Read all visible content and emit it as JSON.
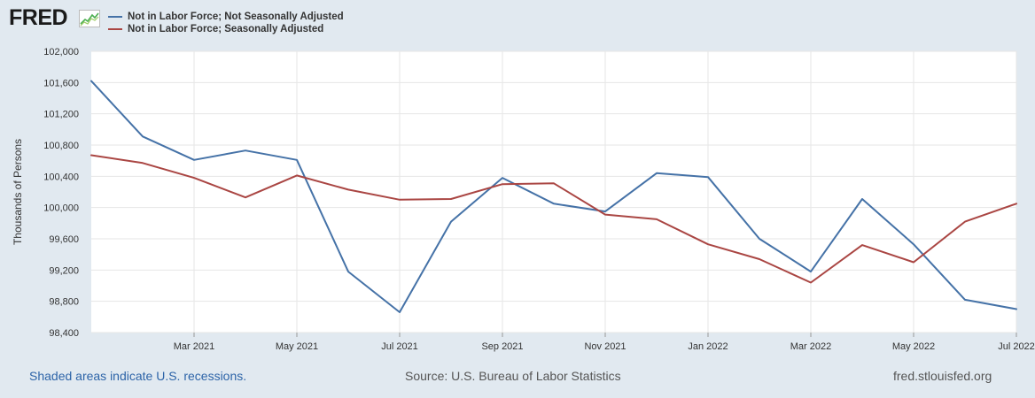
{
  "logo": {
    "text": "FRED",
    "icon": "fred-chart-icon"
  },
  "chart_data": {
    "type": "line",
    "title": "",
    "xlabel": "",
    "ylabel": "Thousands of Persons",
    "ylim": [
      98400,
      102000
    ],
    "yticks": [
      98400,
      98800,
      99200,
      99600,
      100000,
      100400,
      100800,
      101200,
      101600,
      102000
    ],
    "ytick_labels": [
      "98,400",
      "98,800",
      "99,200",
      "99,600",
      "100,000",
      "100,400",
      "100,800",
      "101,200",
      "101,600",
      "102,000"
    ],
    "x": [
      "Jan 2021",
      "Feb 2021",
      "Mar 2021",
      "Apr 2021",
      "May 2021",
      "Jun 2021",
      "Jul 2021",
      "Aug 2021",
      "Sep 2021",
      "Oct 2021",
      "Nov 2021",
      "Dec 2021",
      "Jan 2022",
      "Feb 2022",
      "Mar 2022",
      "Apr 2022",
      "May 2022",
      "Jun 2022",
      "Jul 2022"
    ],
    "xtick_labels": [
      {
        "index": 2,
        "label": "Mar 2021"
      },
      {
        "index": 4,
        "label": "May 2021"
      },
      {
        "index": 6,
        "label": "Jul 2021"
      },
      {
        "index": 8,
        "label": "Sep 2021"
      },
      {
        "index": 10,
        "label": "Nov 2021"
      },
      {
        "index": 12,
        "label": "Jan 2022"
      },
      {
        "index": 14,
        "label": "Mar 2022"
      },
      {
        "index": 16,
        "label": "May 2022"
      },
      {
        "index": 18,
        "label": "Jul 2022"
      }
    ],
    "grid": true,
    "series": [
      {
        "name": "Not in Labor Force; Not Seasonally Adjusted",
        "color": "#4572a7",
        "values": [
          101620,
          100910,
          100610,
          100730,
          100610,
          99180,
          98660,
          99820,
          100380,
          100050,
          99950,
          100440,
          100390,
          99600,
          99180,
          100110,
          99530,
          98820,
          98700
        ]
      },
      {
        "name": "Not in Labor Force; Seasonally Adjusted",
        "color": "#aa4643",
        "values": [
          100670,
          100570,
          100380,
          100130,
          100410,
          100230,
          100100,
          100110,
          100300,
          100310,
          99910,
          99850,
          99530,
          99340,
          99040,
          99520,
          99300,
          99820,
          100050
        ]
      }
    ]
  },
  "footer": {
    "recessions_note": "Shaded areas indicate U.S. recessions.",
    "source": "Source: U.S. Bureau of Labor Statistics",
    "site": "fred.stlouisfed.org"
  }
}
